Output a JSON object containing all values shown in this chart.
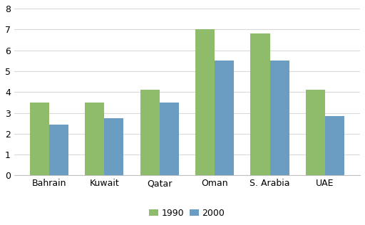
{
  "categories": [
    "Bahrain",
    "Kuwait",
    "Qatar",
    "Oman",
    "S. Arabia",
    "UAE"
  ],
  "values_1990": [
    3.5,
    3.5,
    4.1,
    7.0,
    6.8,
    4.1
  ],
  "values_2000": [
    2.45,
    2.75,
    3.5,
    5.5,
    5.5,
    2.85
  ],
  "color_1990": "#8FBC6A",
  "color_2000": "#6B9DC2",
  "legend_labels": [
    "1990",
    "2000"
  ],
  "ylim": [
    0,
    8
  ],
  "yticks": [
    0,
    1,
    2,
    3,
    4,
    5,
    6,
    7,
    8
  ],
  "background_color": "#ffffff",
  "grid_color": "#d9d9d9",
  "bar_width": 0.35,
  "legend_fontsize": 9,
  "tick_fontsize": 9,
  "bottom_spine_color": "#c0c0c0"
}
